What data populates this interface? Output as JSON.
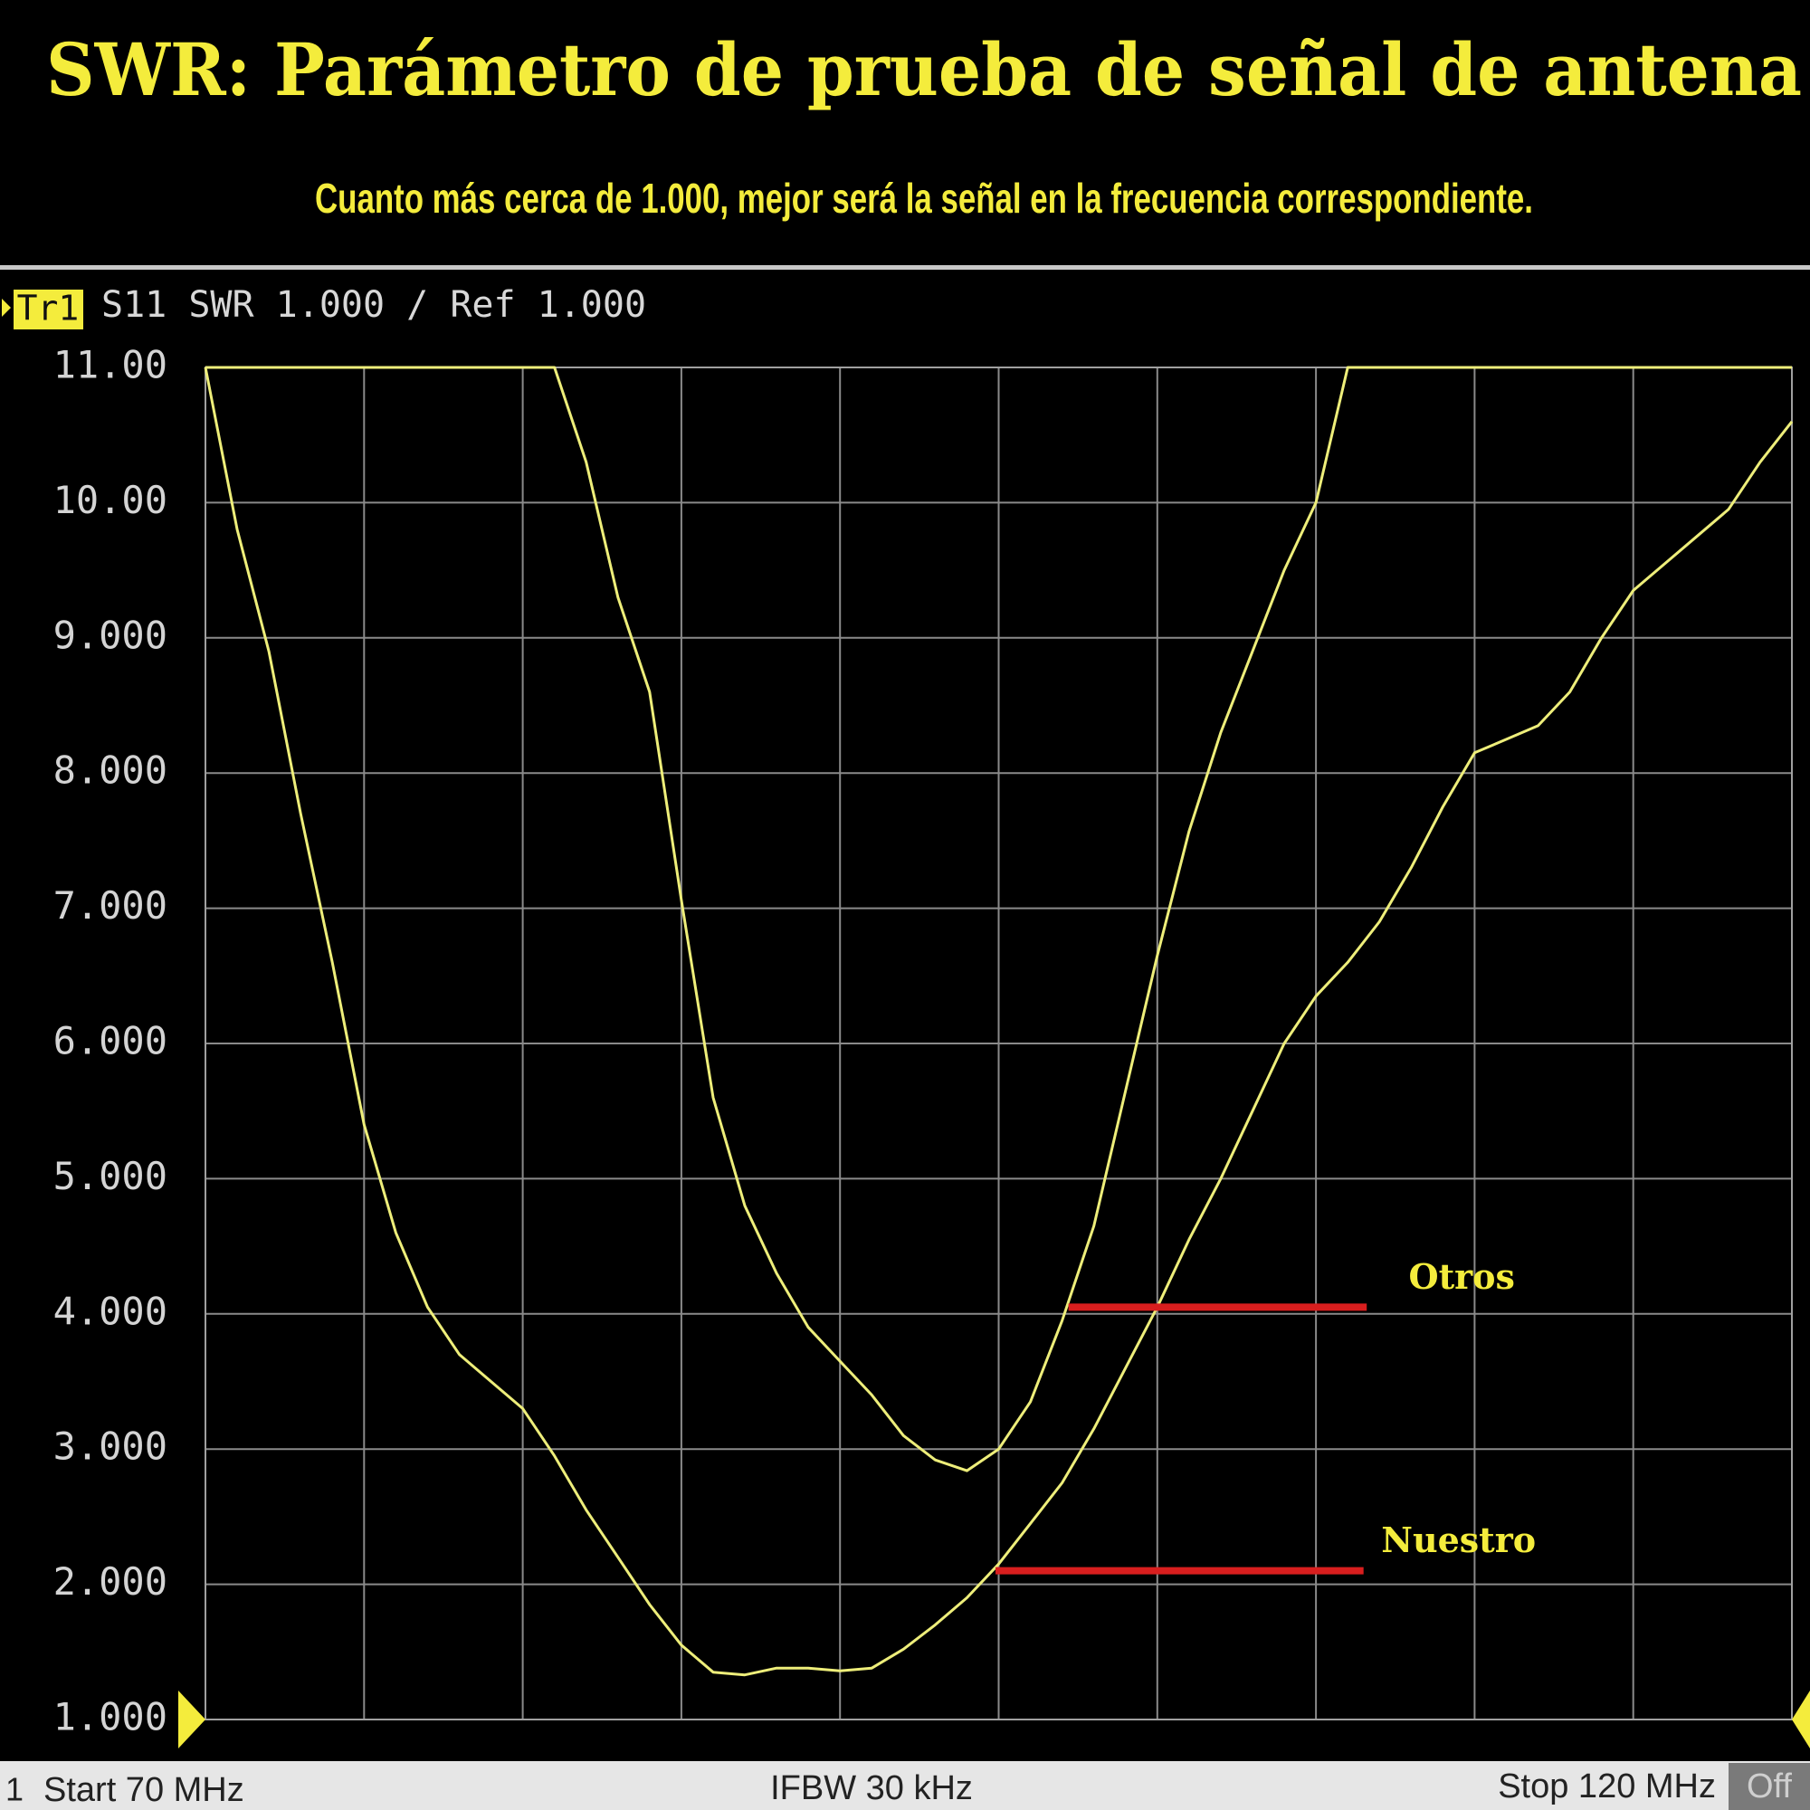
{
  "chart_data": {
    "type": "line",
    "title": "SWR: Parámetro de prueba de señal de antena",
    "subtitle": "Cuanto más cerca de 1.000, mejor será la señal en la frecuencia correspondiente.",
    "trace": "Tr1",
    "trace_info": "S11 SWR 1.000 / Ref 1.000",
    "channel": "1",
    "start_label": "Start 70 MHz",
    "ifbw_label": "IFBW 30 kHz",
    "stop_label": "Stop 120 MHz",
    "off_label": "Off",
    "x": [
      70,
      71,
      72,
      73,
      74,
      75,
      76,
      77,
      78,
      79,
      80,
      81,
      82,
      83,
      84,
      85,
      86,
      87,
      88,
      89,
      90,
      91,
      92,
      93,
      94,
      95,
      96,
      97,
      98,
      99,
      100,
      101,
      102,
      103,
      104,
      105,
      106,
      107,
      108,
      109,
      110,
      111,
      112,
      113,
      114,
      115,
      116,
      117,
      118,
      119,
      120
    ],
    "xlim": [
      70,
      120
    ],
    "xticks": [
      70,
      75,
      80,
      85,
      90,
      95,
      100,
      105,
      110,
      115,
      120
    ],
    "ylim": [
      1,
      11
    ],
    "yticks": [
      {
        "value": 11,
        "label": "11.00"
      },
      {
        "value": 10,
        "label": "10.00"
      },
      {
        "value": 9,
        "label": "9.000"
      },
      {
        "value": 8,
        "label": "8.000"
      },
      {
        "value": 7,
        "label": "7.000"
      },
      {
        "value": 6,
        "label": "6.000"
      },
      {
        "value": 5,
        "label": "5.000"
      },
      {
        "value": 4,
        "label": "4.000"
      },
      {
        "value": 3,
        "label": "3.000"
      },
      {
        "value": 2,
        "label": "2.000"
      },
      {
        "value": 1,
        "label": "1.000"
      }
    ],
    "grid": true,
    "series": [
      {
        "color": "#eeee7a",
        "values": [
          11,
          9.8,
          8.9,
          7.7,
          6.6,
          5.4,
          4.6,
          4.05,
          3.7,
          3.5,
          3.3,
          2.95,
          2.55,
          2.2,
          1.85,
          1.55,
          1.35,
          1.33,
          1.38,
          1.38,
          1.36,
          1.38,
          1.52,
          1.7,
          1.9,
          2.15,
          2.45,
          2.75,
          3.15,
          3.6,
          4.05,
          4.55,
          5.0,
          5.5,
          6.0,
          6.35,
          6.6,
          6.9,
          7.3,
          7.75,
          8.15,
          8.25,
          8.35,
          8.6,
          9.0,
          9.35,
          9.55,
          9.75,
          9.95,
          10.3,
          10.6
        ]
      },
      {
        "color": "#eeee7a",
        "values": [
          11,
          11,
          11,
          11,
          11,
          11,
          11,
          11,
          11,
          11,
          11,
          11,
          10.3,
          9.3,
          8.6,
          7.06,
          5.6,
          4.8,
          4.3,
          3.9,
          3.65,
          3.4,
          3.1,
          2.92,
          2.84,
          3.0,
          3.35,
          3.95,
          4.65,
          5.65,
          6.65,
          7.57,
          8.3,
          8.9,
          9.5,
          10.0,
          11,
          11,
          11,
          11,
          11,
          11,
          11,
          11,
          11,
          11,
          11,
          11,
          11,
          11,
          11
        ]
      }
    ],
    "annotations": [
      {
        "text": "Otros",
        "y": 4.05,
        "x": [
          97.2,
          106.6
        ],
        "color": "#d81e1e"
      },
      {
        "text": "Nuestro",
        "y": 2.1,
        "x": [
          94.9,
          106.5
        ],
        "color": "#d81e1e"
      }
    ]
  }
}
